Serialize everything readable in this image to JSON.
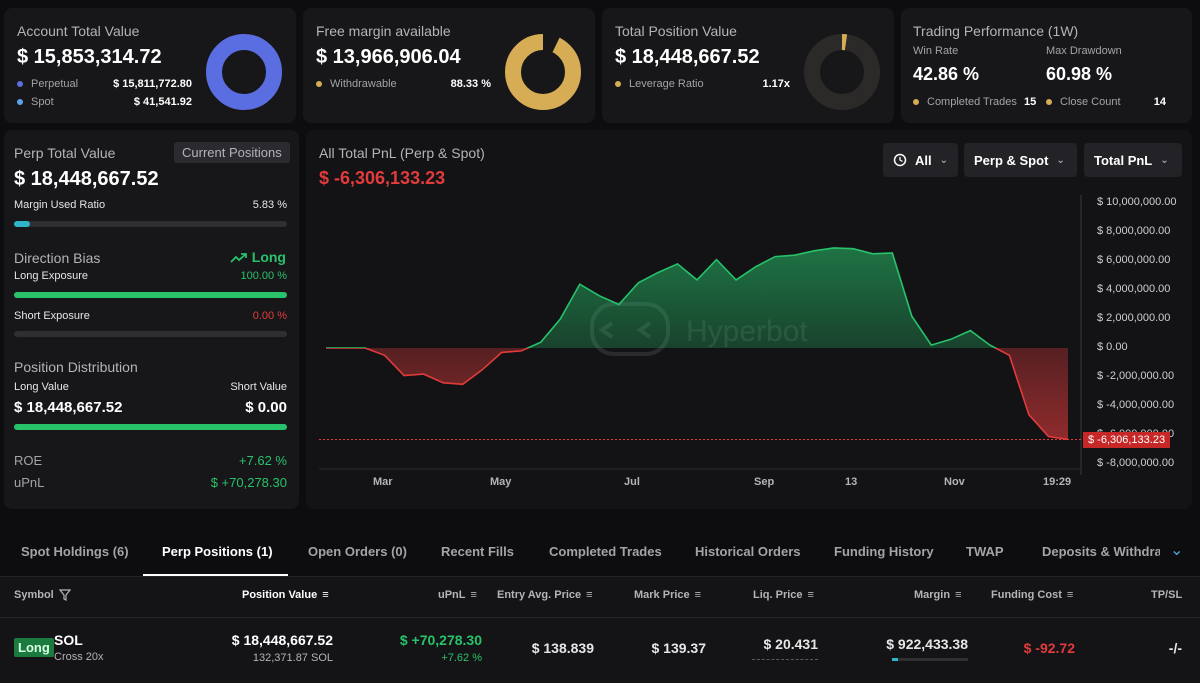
{
  "cards": {
    "account": {
      "title": "Account Total Value",
      "value": "$ 15,853,314.72",
      "rows": [
        {
          "label": "Perpetual",
          "value": "$ 15,811,772.80"
        },
        {
          "label": "Spot",
          "value": "$ 41,541.92"
        }
      ],
      "donut_color": "#5b6ee1"
    },
    "margin": {
      "title": "Free margin available",
      "value": "$ 13,966,906.04",
      "row_label": "Withdrawable",
      "row_value": "88.33 %",
      "donut_color": "#d6ad55"
    },
    "position": {
      "title": "Total Position Value",
      "value": "$ 18,448,667.52",
      "row_label": "Leverage Ratio",
      "row_value": "1.17x"
    },
    "trading": {
      "title": "Trading Performance (1W)",
      "win_rate_label": "Win Rate",
      "win_rate": "42.86 %",
      "drawdown_label": "Max Drawdown",
      "drawdown": "60.98 %",
      "completed_label": "Completed Trades",
      "completed_value": "15",
      "close_label": "Close Count",
      "close_value": "14"
    }
  },
  "perp": {
    "title": "Perp Total Value",
    "badge": "Current Positions",
    "value": "$ 18,448,667.52",
    "margin_used_label": "Margin Used Ratio",
    "margin_used": "5.83 %",
    "margin_used_fraction": 0.0583,
    "direction_label": "Direction Bias",
    "direction_value": "Long",
    "long_exp_label": "Long Exposure",
    "long_exp": "100.00 %",
    "short_exp_label": "Short Exposure",
    "short_exp": "0.00 %",
    "dist_label": "Position Distribution",
    "long_value_label": "Long Value",
    "short_value_label": "Short Value",
    "long_value": "$ 18,448,667.52",
    "short_value": "$ 0.00",
    "roe_label": "ROE",
    "roe": "+7.62 %",
    "upnl_label": "uPnL",
    "upnl": "$ +70,278.30"
  },
  "pnl": {
    "title": "All Total PnL (Perp & Spot)",
    "value": "$ -6,306,133.23",
    "filters": [
      "All",
      "Perp & Spot",
      "Total PnL"
    ],
    "watermark": "Hyperbot",
    "current_label": "$ -6,306,133.23"
  },
  "chart_data": {
    "type": "area",
    "title": "All Total PnL (Perp & Spot)",
    "y_ticks": [
      "$ 10,000,000.00",
      "$ 8,000,000.00",
      "$ 6,000,000.00",
      "$ 4,000,000.00",
      "$ 2,000,000.00",
      "$ 0.00",
      "$ -2,000,000.00",
      "$ -4,000,000.00",
      "$ -6,000,000.00",
      "$ -8,000,000.00"
    ],
    "x_ticks": [
      "Mar",
      "May",
      "Jul",
      "Sep",
      "13",
      "Nov",
      "19:29"
    ],
    "ylim": [
      -8000000,
      10000000
    ],
    "positive_color": "#27c26a",
    "negative_color": "#e23b3b",
    "values": [
      0,
      0,
      0,
      -500000,
      -1900000,
      -1800000,
      -2400000,
      -2500000,
      -1500000,
      -300000,
      -200000,
      400000,
      2000000,
      4400000,
      3600000,
      3000000,
      4500000,
      5200000,
      5800000,
      4700000,
      6100000,
      4700000,
      5600000,
      6300000,
      6400000,
      6700000,
      6900000,
      6850000,
      6500000,
      6550000,
      2200000,
      200000,
      600000,
      1200000,
      200000,
      -500000,
      -4600000,
      -6100000,
      -6306133
    ]
  },
  "tabs": [
    "Spot Holdings (6)",
    "Perp Positions (1)",
    "Open Orders (0)",
    "Recent Fills",
    "Completed Trades",
    "Historical Orders",
    "Funding History",
    "TWAP",
    "Deposits & Withdraw"
  ],
  "table": {
    "headers": [
      "Symbol",
      "Position Value",
      "uPnL",
      "Entry Avg. Price",
      "Mark Price",
      "Liq. Price",
      "Margin",
      "Funding Cost",
      "TP/SL"
    ],
    "row": {
      "side": "Long",
      "symbol": "SOL",
      "mode": "Cross 20x",
      "position_value": "$ 18,448,667.52",
      "position_size": "132,371.87 SOL",
      "upnl": "$ +70,278.30",
      "upnl_pct": "+7.62 %",
      "entry": "$ 138.839",
      "mark": "$ 139.37",
      "liq": "$ 20.431",
      "margin": "$ 922,433.38",
      "funding": "$ -92.72",
      "tpsl": "-/-"
    }
  }
}
